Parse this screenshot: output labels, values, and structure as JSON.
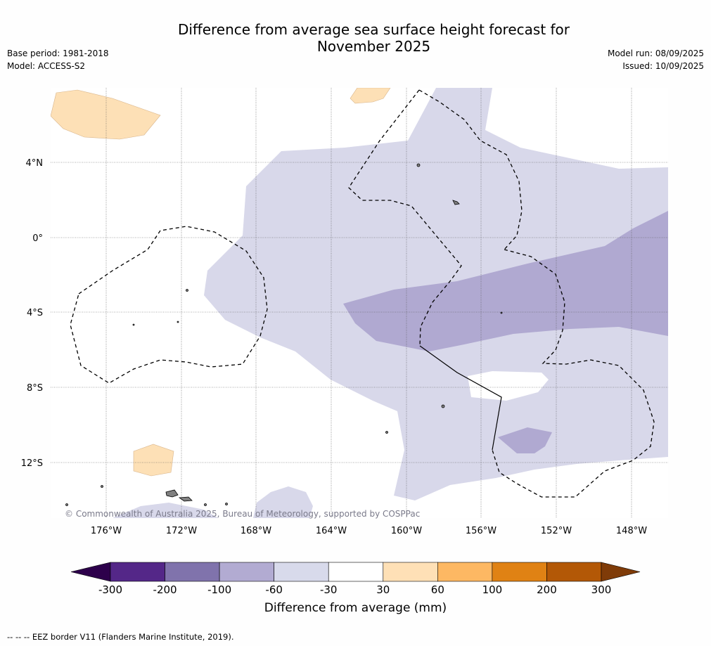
{
  "title": {
    "line1": "Difference from average sea surface height forecast for",
    "line2": "November 2025"
  },
  "meta_left": {
    "base_period": "Base period: 1981-2018",
    "model": "Model: ACCESS-S2"
  },
  "meta_right": {
    "model_run": "Model run: 08/09/2025",
    "issued": "Issued: 10/09/2025"
  },
  "map": {
    "lat_labels": [
      "4°N",
      "0°",
      "4°S",
      "8°S",
      "12°S"
    ],
    "lon_labels": [
      "176°W",
      "172°W",
      "168°W",
      "164°W",
      "160°W",
      "156°W",
      "152°W",
      "148°W"
    ],
    "copyright": "© Commonwealth of Australia 2025, Bureau of Meteorology, supported by COSPPac",
    "colors": {
      "land": "#808080",
      "light_purple": "#d8d8ea",
      "mid_purple": "#b0a9d1",
      "light_orange": "#fde0b6"
    }
  },
  "colorbar": {
    "label": "Difference from average (mm)",
    "ticks": [
      "-300",
      "-200",
      "-100",
      "-60",
      "-30",
      "30",
      "60",
      "100",
      "200",
      "300"
    ],
    "colors": [
      "#2d004b",
      "#542788",
      "#8073ac",
      "#b2abd2",
      "#d8daeb",
      "#ffffff",
      "#fee0b6",
      "#fdb863",
      "#e08214",
      "#b35806",
      "#7f3b08"
    ]
  },
  "footer": "--  --  -- EEZ border V11 (Flanders Marine Institute, 2019)."
}
